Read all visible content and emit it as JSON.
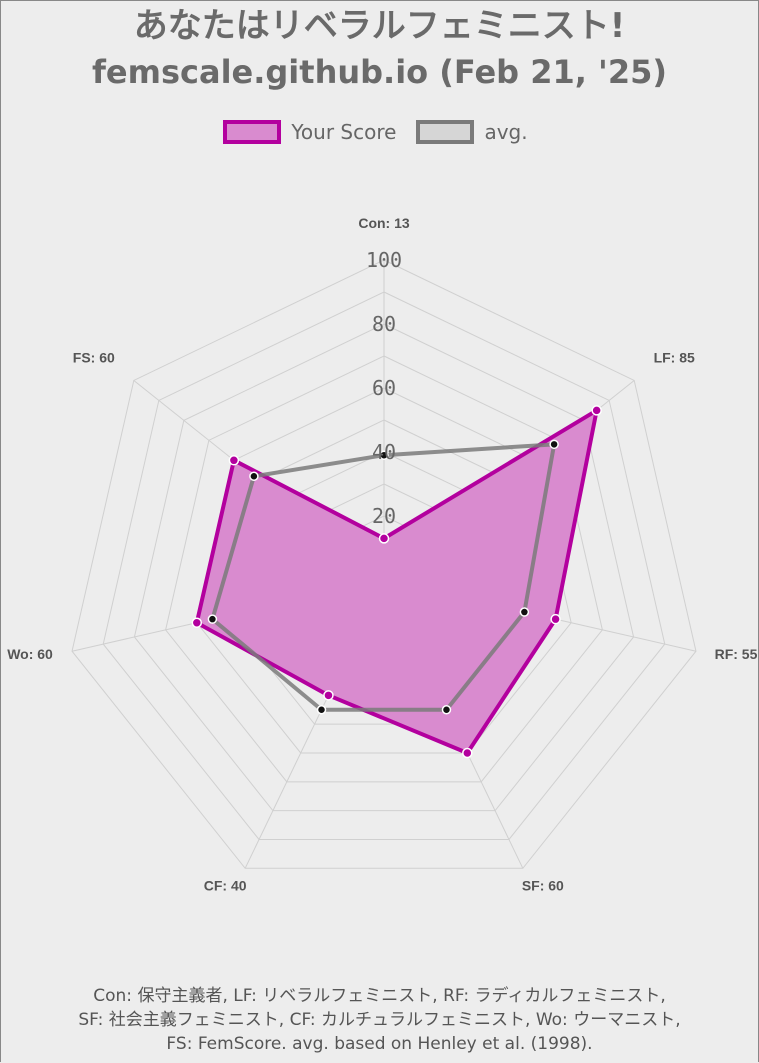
{
  "title_line1": "あなたはリベラルフェミニスト!",
  "title_line2": "femscale.github.io (Feb 21, '25)",
  "chart_data": {
    "type": "radar",
    "axes": [
      "Con: 13",
      "LF: 85",
      "RF: 55",
      "SF: 60",
      "CF: 40",
      "Wo: 60",
      "FS: 60"
    ],
    "r_ticks": [
      "20",
      "40",
      "60",
      "80",
      "100"
    ],
    "r_range": [
      0,
      100
    ],
    "series": [
      {
        "name": "Your Score",
        "values": [
          13,
          85,
          55,
          60,
          40,
          60,
          60
        ],
        "color": "#b3009e",
        "fill": "#d98bcf"
      },
      {
        "name": "avg.",
        "values": [
          39,
          68,
          45,
          45,
          45,
          55,
          52
        ],
        "color": "#7a7a7a",
        "fill": "none"
      }
    ],
    "grid": true
  },
  "footer": [
    "Con: 保守主義者, LF: リベラルフェミニスト, RF: ラディカルフェミニスト,",
    "SF: 社会主義フェミニスト, CF: カルチュラルフェミニスト, Wo: ウーマニスト,",
    "FS: FemScore. avg. based on Henley et al. (1998)."
  ]
}
